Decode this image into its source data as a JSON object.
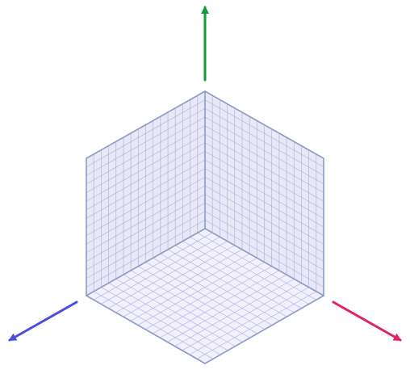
{
  "diagram": {
    "kind": "isometric-coordinate-grid",
    "planes": [
      {
        "id": "left-wall",
        "grid_divisions": 16
      },
      {
        "id": "right-wall",
        "grid_divisions": 16
      },
      {
        "id": "floor",
        "grid_divisions": 16
      }
    ],
    "axes": [
      {
        "id": "x-axis",
        "direction": "down-right",
        "color": "#e0245e"
      },
      {
        "id": "y-axis",
        "direction": "up",
        "color": "#0f9d3c"
      },
      {
        "id": "z-axis",
        "direction": "down-left",
        "color": "#4a4ee0"
      }
    ],
    "colors": {
      "wall_fill": "#e8e8f6",
      "floor_fill": "#f3f0fd",
      "grid_line": "#9fa3d6",
      "edge_line": "#8a9bc4"
    }
  }
}
